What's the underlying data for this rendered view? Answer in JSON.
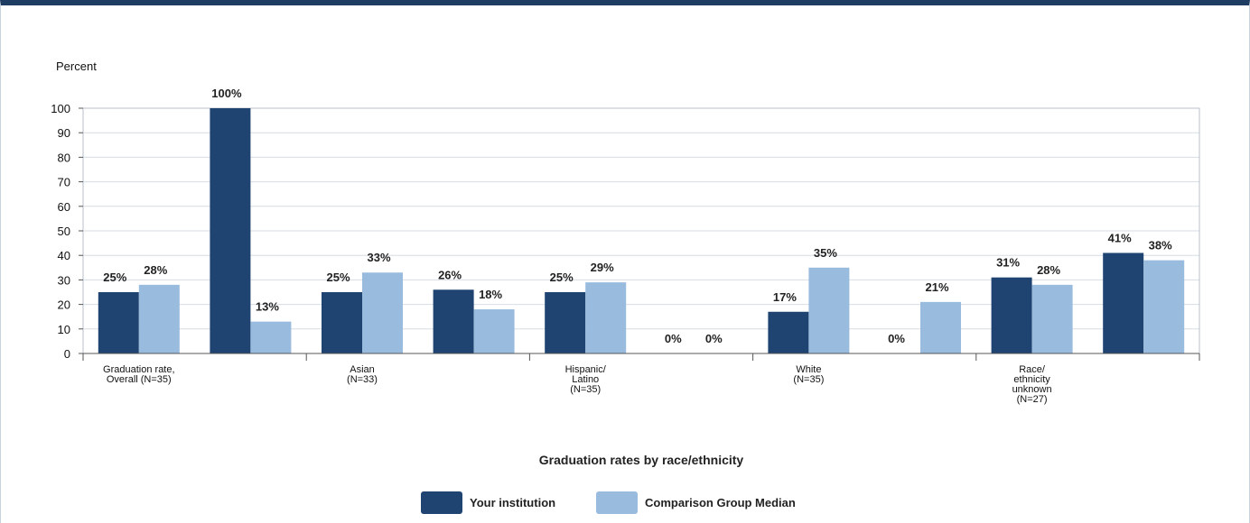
{
  "chart_data": {
    "type": "bar",
    "title": "",
    "ylabel": "Percent",
    "xlabel": "Graduation rates by race/ethnicity",
    "ylim": [
      0,
      100
    ],
    "yticks": [
      0,
      10,
      20,
      30,
      40,
      50,
      60,
      70,
      80,
      90,
      100
    ],
    "value_suffix": "%",
    "categories": [
      [
        "Graduation rate,",
        "Overall (N=35)"
      ],
      [],
      [
        "Asian",
        "(N=33)"
      ],
      [],
      [
        "Hispanic/",
        "Latino",
        "(N=35)"
      ],
      [],
      [
        "White",
        "(N=35)"
      ],
      [],
      [
        "Race/",
        "ethnicity",
        "unknown",
        "(N=27)"
      ],
      []
    ],
    "series": [
      {
        "name": "Your institution",
        "color": "#1f4472",
        "values": [
          25,
          100,
          25,
          26,
          25,
          0,
          17,
          0,
          31,
          41
        ]
      },
      {
        "name": "Comparison Group Median",
        "color": "#99bbde",
        "values": [
          28,
          13,
          33,
          18,
          29,
          0,
          35,
          21,
          28,
          38
        ]
      }
    ],
    "grid": true,
    "legend_position": "bottom"
  }
}
